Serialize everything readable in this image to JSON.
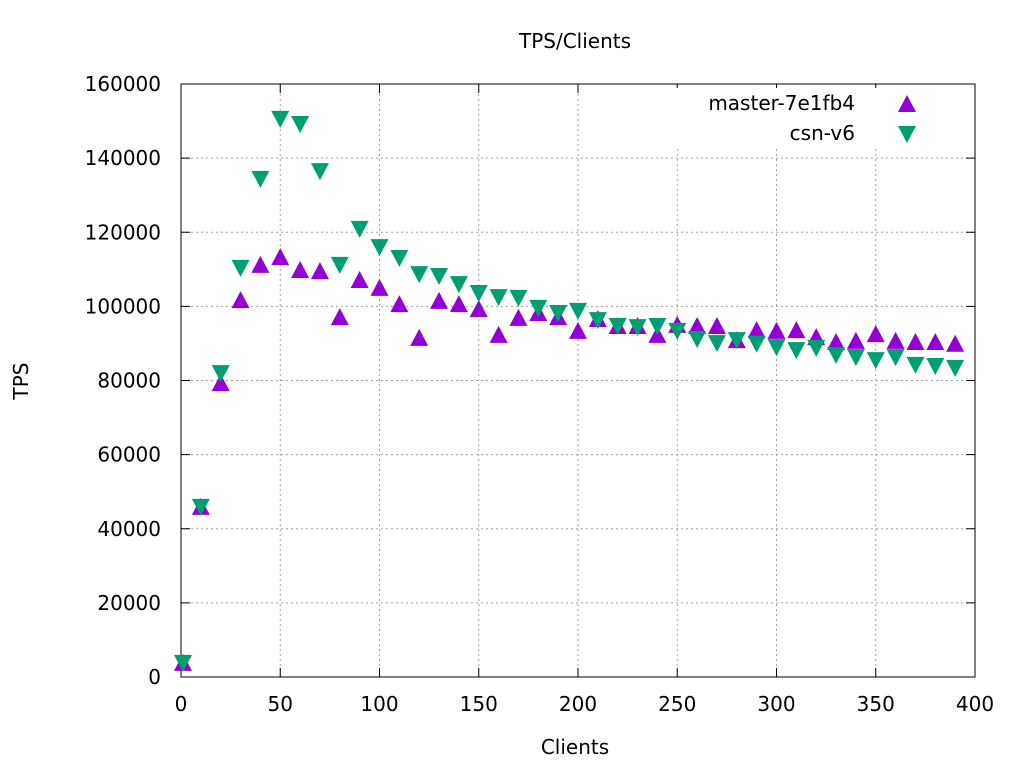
{
  "chart_data": {
    "type": "scatter",
    "title": "TPS/Clients",
    "xlabel": "Clients",
    "ylabel": "TPS",
    "xlim": [
      0,
      400
    ],
    "ylim": [
      0,
      160000
    ],
    "xticks": [
      0,
      50,
      100,
      150,
      200,
      250,
      300,
      350,
      400
    ],
    "yticks": [
      0,
      20000,
      40000,
      60000,
      80000,
      100000,
      120000,
      140000,
      160000
    ],
    "grid": true,
    "legend_position": "top-right",
    "x": [
      1,
      10,
      20,
      30,
      40,
      50,
      60,
      70,
      80,
      90,
      100,
      110,
      120,
      130,
      140,
      150,
      160,
      170,
      180,
      190,
      200,
      210,
      220,
      230,
      240,
      250,
      260,
      270,
      280,
      290,
      300,
      310,
      320,
      330,
      340,
      350,
      360,
      370,
      380,
      390
    ],
    "series": [
      {
        "name": "master-7e1fb4",
        "color": "#9400d3",
        "marker": "triangle-up",
        "values": [
          3800,
          45900,
          79300,
          101700,
          111200,
          113300,
          109800,
          109500,
          97100,
          107100,
          105000,
          100600,
          91500,
          101500,
          100600,
          99300,
          92300,
          96900,
          98200,
          97100,
          93400,
          96600,
          94700,
          94700,
          92300,
          95000,
          94700,
          94700,
          90900,
          93600,
          93400,
          93600,
          91700,
          90400,
          90700,
          92500,
          90700,
          90400,
          90400,
          89900
        ]
      },
      {
        "name": "csn-v6",
        "color": "#009e73",
        "marker": "triangle-down",
        "values": [
          3800,
          45900,
          82000,
          110400,
          134400,
          150600,
          149200,
          136500,
          111200,
          120900,
          116000,
          113100,
          108700,
          108200,
          106000,
          103600,
          102500,
          102300,
          99600,
          98200,
          98800,
          96300,
          94700,
          94400,
          94700,
          93400,
          91200,
          90100,
          90900,
          89900,
          89000,
          88200,
          88800,
          86900,
          86300,
          85500,
          86300,
          84200,
          83900,
          83400
        ]
      }
    ]
  }
}
